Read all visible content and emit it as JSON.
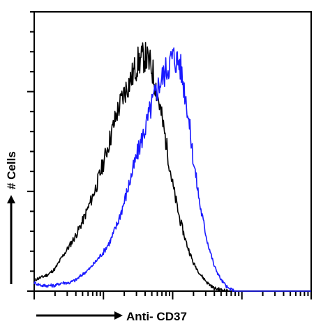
{
  "chart_data": {
    "type": "line",
    "title": "",
    "xlabel": "Anti- CD37",
    "ylabel": "# Cells",
    "x_scale": "log",
    "xlim": [
      1,
      10000
    ],
    "ylim": [
      0,
      100
    ],
    "grid": false,
    "legend": "none",
    "series": [
      {
        "color": "#000000",
        "x": [
          1.0,
          1.3,
          1.6,
          2.0,
          2.5,
          3.2,
          4.0,
          5.0,
          6.3,
          8.0,
          10.0,
          12.6,
          15.8,
          20.0,
          25.1,
          31.6,
          39.8,
          50.1,
          63.1,
          79.4,
          100.0,
          125.9,
          158.5,
          199.5,
          251.2,
          316.2,
          398.1,
          501.2,
          631.0,
          794.3,
          1000.0,
          2000.0,
          10000.0
        ],
        "values": [
          4,
          5,
          6,
          8,
          12,
          16,
          20,
          25,
          31,
          38,
          46,
          55,
          64,
          71,
          76,
          82,
          84,
          80,
          68,
          54,
          38,
          26,
          17,
          10,
          6,
          3,
          1,
          0.5,
          0,
          0,
          0,
          0,
          0
        ]
      },
      {
        "color": "#1a1aff",
        "x": [
          1.0,
          1.3,
          1.6,
          2.0,
          2.5,
          3.2,
          4.0,
          5.0,
          6.3,
          8.0,
          10.0,
          12.6,
          15.8,
          20.0,
          25.1,
          31.6,
          39.8,
          50.1,
          63.1,
          79.4,
          100.0,
          125.9,
          158.5,
          199.5,
          251.2,
          316.2,
          398.1,
          501.2,
          631.0,
          794.3,
          1000.0,
          2000.0,
          10000.0
        ],
        "values": [
          3,
          2,
          2,
          2,
          3,
          3,
          4,
          6,
          8,
          11,
          14,
          18,
          24,
          32,
          41,
          50,
          58,
          67,
          74,
          79,
          84,
          82,
          68,
          47,
          30,
          18,
          9,
          4,
          1,
          0,
          0,
          0,
          0
        ]
      }
    ]
  }
}
